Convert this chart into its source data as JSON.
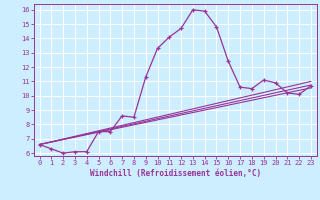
{
  "xlabel": "Windchill (Refroidissement éolien,°C)",
  "bg_color": "#cceeff",
  "line_color": "#993399",
  "grid_color": "#ffffff",
  "xlim": [
    -0.5,
    23.5
  ],
  "ylim": [
    5.8,
    16.4
  ],
  "xticks": [
    0,
    1,
    2,
    3,
    4,
    5,
    6,
    7,
    8,
    9,
    10,
    11,
    12,
    13,
    14,
    15,
    16,
    17,
    18,
    19,
    20,
    21,
    22,
    23
  ],
  "yticks": [
    6,
    7,
    8,
    9,
    10,
    11,
    12,
    13,
    14,
    15,
    16
  ],
  "line1_x": [
    0,
    1,
    2,
    3,
    4,
    5,
    6,
    7,
    8,
    9,
    10,
    11,
    12,
    13,
    14,
    15,
    16,
    17,
    18,
    19,
    20,
    21,
    22,
    23
  ],
  "line1_y": [
    6.6,
    6.3,
    6.0,
    6.1,
    6.1,
    7.5,
    7.5,
    8.6,
    8.5,
    11.3,
    13.3,
    14.1,
    14.7,
    16.0,
    15.9,
    14.8,
    12.4,
    10.6,
    10.5,
    11.1,
    10.9,
    10.2,
    10.1,
    10.7
  ],
  "line2_x": [
    0,
    23
  ],
  "line2_y": [
    6.6,
    10.55
  ],
  "line3_x": [
    0,
    23
  ],
  "line3_y": [
    6.6,
    10.75
  ],
  "line4_x": [
    0,
    23
  ],
  "line4_y": [
    6.6,
    11.0
  ]
}
